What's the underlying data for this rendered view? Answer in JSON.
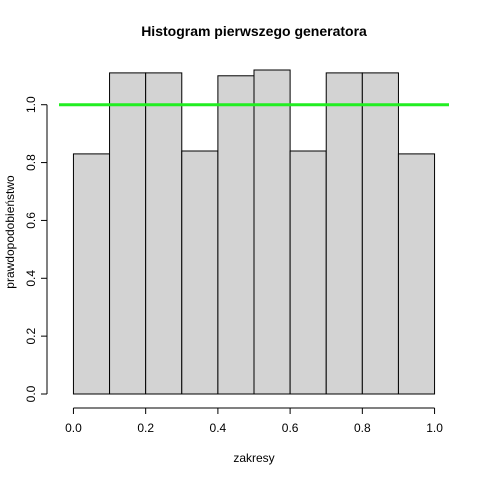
{
  "chart_data": {
    "type": "bar",
    "title": "Histogram pierwszego generatora",
    "xlabel": "zakresy",
    "ylabel": "prawdopodobieństwo",
    "bins": [
      {
        "start": 0.0,
        "end": 0.1,
        "value": 0.83
      },
      {
        "start": 0.1,
        "end": 0.2,
        "value": 1.11
      },
      {
        "start": 0.2,
        "end": 0.3,
        "value": 1.11
      },
      {
        "start": 0.3,
        "end": 0.4,
        "value": 0.84
      },
      {
        "start": 0.4,
        "end": 0.5,
        "value": 1.1
      },
      {
        "start": 0.5,
        "end": 0.6,
        "value": 1.12
      },
      {
        "start": 0.6,
        "end": 0.7,
        "value": 0.84
      },
      {
        "start": 0.7,
        "end": 0.8,
        "value": 1.11
      },
      {
        "start": 0.8,
        "end": 0.9,
        "value": 1.11
      },
      {
        "start": 0.9,
        "end": 1.0,
        "value": 0.83
      }
    ],
    "reference_line": {
      "y": 1.0,
      "color": "#22ee22"
    },
    "xticks": [
      "0.0",
      "0.2",
      "0.4",
      "0.6",
      "0.8",
      "1.0"
    ],
    "yticks": [
      "0.0",
      "0.2",
      "0.4",
      "0.6",
      "0.8",
      "1.0"
    ],
    "xlim": [
      -0.04,
      1.04
    ],
    "ylim": [
      0.0,
      1.12
    ],
    "grid": false,
    "bar_color": "#d3d3d3"
  }
}
